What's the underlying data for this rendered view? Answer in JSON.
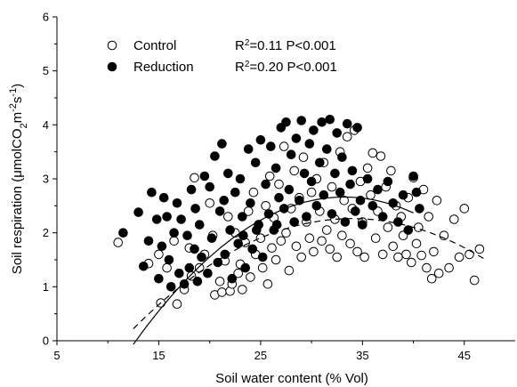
{
  "chart_data": {
    "type": "scatter",
    "xlabel": "Soil water content (% Vol)",
    "ylabel": "Soil respiration (μmolCO2m-2s-1)",
    "xlim": [
      5,
      50
    ],
    "ylim": [
      0,
      6
    ],
    "xticks": [
      "5",
      "15",
      "25",
      "35",
      "45"
    ],
    "yticks": [
      "0",
      "1",
      "2",
      "3",
      "4",
      "5",
      "6"
    ],
    "grid": false,
    "legend_position": "top-left",
    "series": [
      {
        "name": "Control",
        "marker": "open-circle",
        "stat_r2": "0.11",
        "stat_p": "P<0.001",
        "fit": {
          "style": "dashed",
          "coef": [
            -0.00443,
            0.301,
            -2.85
          ],
          "x_range": [
            12.5,
            47
          ]
        },
        "points": [
          [
            11,
            1.82
          ],
          [
            14,
            1.43
          ],
          [
            15,
            1.6
          ],
          [
            15.2,
            0.7
          ],
          [
            15.8,
            1.35
          ],
          [
            16.5,
            1.85
          ],
          [
            16.8,
            0.68
          ],
          [
            17.5,
            0.95
          ],
          [
            18,
            1.72
          ],
          [
            18.2,
            1.2
          ],
          [
            18.5,
            3.02
          ],
          [
            19,
            1.35
          ],
          [
            19.5,
            1.6
          ],
          [
            20,
            2.55
          ],
          [
            20.3,
            1.95
          ],
          [
            20.5,
            0.85
          ],
          [
            21,
            1.1
          ],
          [
            21.2,
            0.9
          ],
          [
            21.5,
            1.48
          ],
          [
            21.8,
            2.3
          ],
          [
            22,
            0.92
          ],
          [
            22.2,
            1.05
          ],
          [
            22.5,
            2.0
          ],
          [
            22.8,
            1.25
          ],
          [
            23,
            1.42
          ],
          [
            23.2,
            0.95
          ],
          [
            23.5,
            1.82
          ],
          [
            23.8,
            2.4
          ],
          [
            24,
            1.18
          ],
          [
            24.3,
            2.75
          ],
          [
            24.5,
            1.6
          ],
          [
            24.8,
            2.15
          ],
          [
            25,
            1.9
          ],
          [
            25.2,
            1.35
          ],
          [
            25.5,
            2.5
          ],
          [
            25.7,
            1.05
          ],
          [
            25.9,
            3.05
          ],
          [
            26.1,
            1.72
          ],
          [
            26.3,
            2.28
          ],
          [
            26.5,
            1.5
          ],
          [
            26.8,
            2.9
          ],
          [
            27,
            1.85
          ],
          [
            27.3,
            3.6
          ],
          [
            27.5,
            2.0
          ],
          [
            27.8,
            1.3
          ],
          [
            28,
            2.45
          ],
          [
            28.3,
            3.15
          ],
          [
            28.5,
            1.75
          ],
          [
            28.8,
            2.65
          ],
          [
            29,
            1.55
          ],
          [
            29.2,
            3.4
          ],
          [
            29.5,
            2.2
          ],
          [
            29.8,
            1.9
          ],
          [
            30,
            2.75
          ],
          [
            30.2,
            1.65
          ],
          [
            30.5,
            3.0
          ],
          [
            30.8,
            2.4
          ],
          [
            31,
            1.85
          ],
          [
            31.2,
            3.3
          ],
          [
            31.5,
            2.05
          ],
          [
            31.8,
            1.7
          ],
          [
            32,
            2.85
          ],
          [
            32.3,
            2.25
          ],
          [
            32.5,
            1.55
          ],
          [
            32.8,
            3.5
          ],
          [
            33,
            1.95
          ],
          [
            33.2,
            2.6
          ],
          [
            33.5,
            3.78
          ],
          [
            33.8,
            1.8
          ],
          [
            34,
            2.45
          ],
          [
            34.2,
            3.9
          ],
          [
            34.5,
            1.65
          ],
          [
            34.8,
            2.95
          ],
          [
            35,
            2.2
          ],
          [
            35.2,
            1.55
          ],
          [
            35.5,
            3.2
          ],
          [
            35.8,
            2.7
          ],
          [
            36,
            3.48
          ],
          [
            36.3,
            1.9
          ],
          [
            36.5,
            2.4
          ],
          [
            36.8,
            3.42
          ],
          [
            37,
            1.6
          ],
          [
            37.3,
            2.85
          ],
          [
            37.5,
            2.1
          ],
          [
            37.8,
            3.15
          ],
          [
            38,
            1.75
          ],
          [
            38.3,
            2.5
          ],
          [
            38.5,
            1.55
          ],
          [
            38.8,
            2.3
          ],
          [
            39,
            1.95
          ],
          [
            39.3,
            1.6
          ],
          [
            39.5,
            2.65
          ],
          [
            39.8,
            1.45
          ],
          [
            40,
            3.02
          ],
          [
            40.3,
            1.8
          ],
          [
            40.5,
            2.1
          ],
          [
            40.8,
            1.58
          ],
          [
            41,
            2.8
          ],
          [
            41.3,
            1.35
          ],
          [
            41.5,
            2.3
          ],
          [
            41.8,
            1.15
          ],
          [
            42,
            1.65
          ],
          [
            42.3,
            2.6
          ],
          [
            42.5,
            1.25
          ],
          [
            43,
            1.95
          ],
          [
            43.5,
            1.35
          ],
          [
            44,
            2.25
          ],
          [
            44.5,
            1.55
          ],
          [
            45,
            2.45
          ],
          [
            45.5,
            1.6
          ],
          [
            46,
            1.12
          ],
          [
            46.5,
            1.7
          ]
        ]
      },
      {
        "name": "Reduction",
        "marker": "filled-circle",
        "stat_r2": "0.20",
        "stat_p": "P<0.001",
        "fit": {
          "style": "solid",
          "coef": [
            -0.00637,
            0.423,
            -4.36
          ],
          "x_range": [
            12.5,
            40
          ]
        },
        "points": [
          [
            11.5,
            2.0
          ],
          [
            13,
            2.38
          ],
          [
            13.5,
            1.38
          ],
          [
            14,
            1.85
          ],
          [
            14.3,
            2.75
          ],
          [
            14.8,
            2.25
          ],
          [
            15,
            1.15
          ],
          [
            15.3,
            1.75
          ],
          [
            15.5,
            2.65
          ],
          [
            15.8,
            2.3
          ],
          [
            16,
            1.5
          ],
          [
            16.2,
            1.0
          ],
          [
            16.5,
            2.0
          ],
          [
            16.8,
            2.55
          ],
          [
            17,
            1.25
          ],
          [
            17.2,
            2.25
          ],
          [
            17.5,
            1.05
          ],
          [
            17.8,
            1.95
          ],
          [
            18,
            1.35
          ],
          [
            18.2,
            2.8
          ],
          [
            18.5,
            1.7
          ],
          [
            18.8,
            1.1
          ],
          [
            19,
            2.15
          ],
          [
            19.2,
            1.55
          ],
          [
            19.5,
            3.05
          ],
          [
            19.8,
            1.25
          ],
          [
            20,
            2.85
          ],
          [
            20.2,
            1.9
          ],
          [
            20.5,
            3.42
          ],
          [
            20.8,
            1.45
          ],
          [
            21,
            2.4
          ],
          [
            21.2,
            3.65
          ],
          [
            21.5,
            1.6
          ],
          [
            21.8,
            3.1
          ],
          [
            22,
            2.05
          ],
          [
            22.2,
            1.15
          ],
          [
            22.5,
            2.75
          ],
          [
            22.8,
            1.8
          ],
          [
            23,
            3.0
          ],
          [
            23.2,
            2.3
          ],
          [
            23.5,
            1.35
          ],
          [
            23.8,
            3.55
          ],
          [
            24,
            2.55
          ],
          [
            24.2,
            1.7
          ],
          [
            24.5,
            3.3
          ],
          [
            24.8,
            2.15
          ],
          [
            25,
            3.72
          ],
          [
            25.2,
            1.55
          ],
          [
            25.5,
            2.9
          ],
          [
            25.8,
            2.35
          ],
          [
            26,
            3.6
          ],
          [
            26.3,
            2.05
          ],
          [
            26.5,
            3.2
          ],
          [
            26.8,
            2.65
          ],
          [
            27,
            3.95
          ],
          [
            27.3,
            2.45
          ],
          [
            27.5,
            4.05
          ],
          [
            27.8,
            2.8
          ],
          [
            28,
            3.45
          ],
          [
            28.3,
            2.2
          ],
          [
            28.5,
            3.75
          ],
          [
            28.8,
            2.6
          ],
          [
            29,
            4.08
          ],
          [
            29.3,
            3.1
          ],
          [
            29.5,
            2.3
          ],
          [
            29.8,
            3.65
          ],
          [
            30,
            2.95
          ],
          [
            30.2,
            3.9
          ],
          [
            30.5,
            2.5
          ],
          [
            30.8,
            3.3
          ],
          [
            31,
            4.05
          ],
          [
            31.2,
            2.7
          ],
          [
            31.5,
            3.55
          ],
          [
            31.8,
            4.1
          ],
          [
            32,
            2.35
          ],
          [
            32.3,
            3.1
          ],
          [
            32.5,
            3.85
          ],
          [
            32.8,
            2.75
          ],
          [
            33,
            3.4
          ],
          [
            33.3,
            2.2
          ],
          [
            33.5,
            4.02
          ],
          [
            33.8,
            2.9
          ],
          [
            34,
            3.15
          ],
          [
            34.3,
            2.4
          ],
          [
            34.5,
            3.95
          ],
          [
            34.8,
            2.6
          ],
          [
            35,
            2.15
          ],
          [
            35.5,
            3.0
          ],
          [
            36,
            2.5
          ],
          [
            36.5,
            2.8
          ],
          [
            37,
            2.3
          ],
          [
            37.5,
            2.95
          ],
          [
            38,
            2.55
          ],
          [
            38.5,
            2.2
          ],
          [
            39,
            2.7
          ],
          [
            39.5,
            2.05
          ],
          [
            40,
            3.05
          ],
          [
            40.3,
            2.75
          ],
          [
            40.6,
            2.45
          ],
          [
            23.3,
            1.95
          ],
          [
            26.6,
            2.15
          ],
          [
            18.6,
            2.45
          ],
          [
            21.4,
            2.6
          ],
          [
            24.6,
            2.05
          ]
        ]
      }
    ]
  }
}
